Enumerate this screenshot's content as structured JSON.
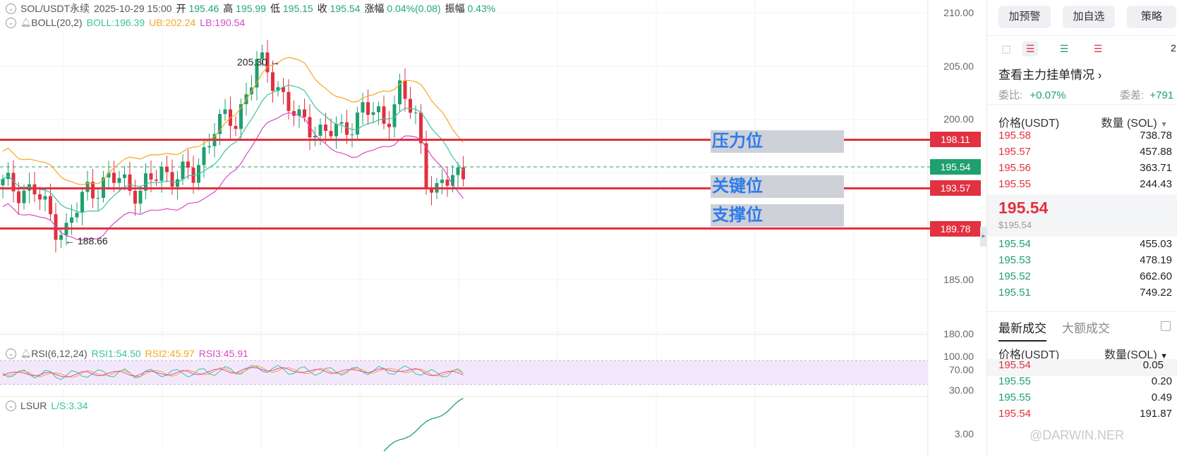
{
  "header": {
    "symbol": "SOL/USDT永续",
    "datetime": "2025-10-29 15:00",
    "open_label": "开",
    "open": "195.46",
    "high_label": "高",
    "high": "195.99",
    "low_label": "低",
    "low": "195.15",
    "close_label": "收",
    "close": "195.54",
    "change_label": "涨幅",
    "change": "0.04%(0.08)",
    "amp_label": "振幅",
    "amp": "0.43%"
  },
  "boll": {
    "name": "BOLL(20,2)",
    "mid": "BOLL:196.39",
    "ub": "UB:202.24",
    "lb": "LB:190.54"
  },
  "rsi": {
    "name": "RSI(6,12,24)",
    "r1": "RSI1:54.50",
    "r2": "RSI2:45.97",
    "r3": "RSI3:45.91"
  },
  "lsur": {
    "name": "LSUR",
    "value": "L/S:3.34"
  },
  "price_axis": [
    "210.00",
    "205.00",
    "200.00",
    "185.00",
    "180.00"
  ],
  "rsi_axis": [
    "100.00",
    "70.00",
    "30.00"
  ],
  "lsur_axis": "3.00",
  "annotations": {
    "high_mark": "205.30",
    "low_mark": "188.66"
  },
  "levels": {
    "resistance": {
      "label": "压力位",
      "price": "198.11"
    },
    "current": {
      "price": "195.54"
    },
    "key": {
      "label": "关键位",
      "price": "193.57"
    },
    "support": {
      "label": "支撑位",
      "price": "189.78"
    }
  },
  "colors": {
    "up": "#1fa06e",
    "down": "#e23140",
    "ub": "#f5a623",
    "mid": "#3cc3a0",
    "lb": "#d64bc4",
    "level": "#e23140",
    "zone_text": "#2f7bea"
  },
  "sidebar": {
    "buttons": [
      "加预警",
      "加自选",
      "策略"
    ],
    "orders_link": "查看主力挂单情况",
    "ratio_label": "委比:",
    "ratio_value": "+0.07%",
    "diff_label": "委差:",
    "diff_value": "+791",
    "ob_header_price": "价格(USDT)",
    "ob_header_qty": "数量 (SOL)",
    "asks": [
      [
        "195.58",
        "738.78"
      ],
      [
        "195.57",
        "457.88"
      ],
      [
        "195.56",
        "363.71"
      ],
      [
        "195.55",
        "244.43"
      ]
    ],
    "last_price": "195.54",
    "last_price_usd": "$195.54",
    "bids": [
      [
        "195.54",
        "455.03"
      ],
      [
        "195.53",
        "478.19"
      ],
      [
        "195.52",
        "662.60"
      ],
      [
        "195.51",
        "749.22"
      ]
    ],
    "trade_tabs": [
      "最新成交",
      "大额成交"
    ],
    "trade_header_price": "价格(USDT)",
    "trade_header_qty": "数量(SOL)",
    "trades": [
      [
        "195.54",
        "0.05",
        "red"
      ],
      [
        "195.55",
        "0.20",
        "green"
      ],
      [
        "195.55",
        "0.49",
        "green"
      ],
      [
        "195.54",
        "191.87",
        "red"
      ]
    ],
    "partial_top_right": "2"
  },
  "watermark": "@DARWIN.NER"
}
